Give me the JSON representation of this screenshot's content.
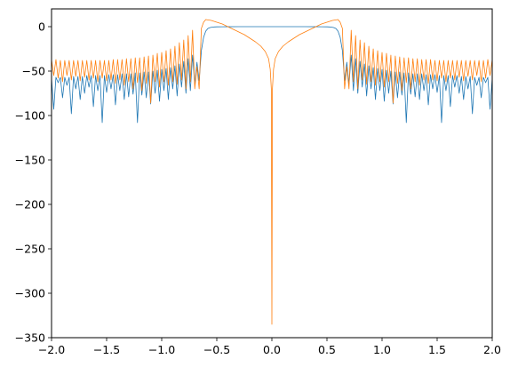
{
  "chart_data": {
    "type": "line",
    "title": "",
    "xlabel": "",
    "ylabel": "",
    "xlim": [
      -2.0,
      2.0
    ],
    "ylim": [
      -350,
      20
    ],
    "xticks": [
      {
        "value": -2.0,
        "label": "−2.0"
      },
      {
        "value": -1.5,
        "label": "−1.5"
      },
      {
        "value": -1.0,
        "label": "−1.0"
      },
      {
        "value": -0.5,
        "label": "−0.5"
      },
      {
        "value": 0.0,
        "label": "0.0"
      },
      {
        "value": 0.5,
        "label": "0.5"
      },
      {
        "value": 1.0,
        "label": "1.0"
      },
      {
        "value": 1.5,
        "label": "1.5"
      },
      {
        "value": 2.0,
        "label": "2.0"
      }
    ],
    "yticks": [
      {
        "value": 0,
        "label": "0"
      },
      {
        "value": -50,
        "label": "−50"
      },
      {
        "value": -100,
        "label": "−100"
      },
      {
        "value": -150,
        "label": "−150"
      },
      {
        "value": -200,
        "label": "−200"
      },
      {
        "value": -250,
        "label": "−250"
      },
      {
        "value": -300,
        "label": "−300"
      },
      {
        "value": -350,
        "label": "−350"
      }
    ],
    "grid": false,
    "legend": "none",
    "series": [
      {
        "color": "#1f77b4",
        "x": [
          -2.0,
          -1.98,
          -1.96,
          -1.94,
          -1.92,
          -1.9,
          -1.88,
          -1.86,
          -1.84,
          -1.82,
          -1.8,
          -1.78,
          -1.76,
          -1.74,
          -1.72,
          -1.7,
          -1.68,
          -1.66,
          -1.64,
          -1.62,
          -1.6,
          -1.58,
          -1.56,
          -1.54,
          -1.52,
          -1.5,
          -1.48,
          -1.46,
          -1.44,
          -1.42,
          -1.4,
          -1.38,
          -1.36,
          -1.34,
          -1.32,
          -1.3,
          -1.28,
          -1.26,
          -1.24,
          -1.22,
          -1.2,
          -1.18,
          -1.16,
          -1.14,
          -1.12,
          -1.1,
          -1.08,
          -1.06,
          -1.04,
          -1.02,
          -1.0,
          -0.98,
          -0.96,
          -0.94,
          -0.92,
          -0.9,
          -0.88,
          -0.86,
          -0.84,
          -0.82,
          -0.8,
          -0.78,
          -0.76,
          -0.74,
          -0.72,
          -0.7,
          -0.68,
          -0.66,
          -0.64,
          -0.62,
          -0.6,
          -0.58,
          -0.56,
          -0.54,
          -0.52,
          -0.5,
          -0.45,
          -0.4,
          -0.3,
          -0.2,
          -0.1,
          0.0,
          0.1,
          0.2,
          0.3,
          0.4,
          0.45,
          0.5,
          0.52,
          0.54,
          0.56,
          0.58,
          0.6,
          0.62,
          0.64,
          0.66,
          0.68,
          0.7,
          0.72,
          0.74,
          0.76,
          0.78,
          0.8,
          0.82,
          0.84,
          0.86,
          0.88,
          0.9,
          0.92,
          0.94,
          0.96,
          0.98,
          1.0,
          1.02,
          1.04,
          1.06,
          1.08,
          1.1,
          1.12,
          1.14,
          1.16,
          1.18,
          1.2,
          1.22,
          1.24,
          1.26,
          1.28,
          1.3,
          1.32,
          1.34,
          1.36,
          1.38,
          1.4,
          1.42,
          1.44,
          1.46,
          1.48,
          1.5,
          1.52,
          1.54,
          1.56,
          1.58,
          1.6,
          1.62,
          1.64,
          1.66,
          1.68,
          1.7,
          1.72,
          1.74,
          1.76,
          1.78,
          1.8,
          1.82,
          1.84,
          1.86,
          1.88,
          1.9,
          1.92,
          1.94,
          1.96,
          1.98,
          2.0
        ],
        "y": [
          -58,
          -93,
          -57,
          -63,
          -57,
          -80,
          -57,
          -66,
          -57,
          -98,
          -56,
          -70,
          -56,
          -82,
          -56,
          -75,
          -55,
          -68,
          -55,
          -90,
          -55,
          -72,
          -55,
          -108,
          -55,
          -74,
          -54,
          -70,
          -54,
          -88,
          -54,
          -72,
          -53,
          -82,
          -53,
          -79,
          -53,
          -76,
          -52,
          -108,
          -52,
          -77,
          -51,
          -80,
          -51,
          -87,
          -50,
          -75,
          -49,
          -84,
          -48,
          -72,
          -47,
          -82,
          -46,
          -70,
          -44,
          -78,
          -42,
          -68,
          -39,
          -75,
          -36,
          -72,
          -32,
          -65,
          -40,
          -61,
          -27,
          -12,
          -5,
          -2,
          -1,
          -0.5,
          -0.3,
          -0.2,
          -0.1,
          -0.05,
          -0.02,
          -0.01,
          -0.005,
          -0.005,
          -0.005,
          -0.01,
          -0.02,
          -0.05,
          -0.1,
          -0.2,
          -0.3,
          -0.5,
          -1,
          -2,
          -5,
          -12,
          -27,
          -61,
          -40,
          -65,
          -32,
          -72,
          -36,
          -75,
          -39,
          -68,
          -42,
          -78,
          -44,
          -70,
          -46,
          -82,
          -47,
          -72,
          -48,
          -84,
          -49,
          -75,
          -50,
          -87,
          -51,
          -80,
          -51,
          -77,
          -52,
          -108,
          -52,
          -76,
          -53,
          -79,
          -53,
          -82,
          -53,
          -72,
          -54,
          -88,
          -54,
          -70,
          -54,
          -74,
          -55,
          -108,
          -55,
          -72,
          -55,
          -90,
          -55,
          -68,
          -55,
          -75,
          -56,
          -82,
          -56,
          -70,
          -56,
          -98,
          -57,
          -66,
          -57,
          -80,
          -57,
          -63,
          -57,
          -93,
          -58
        ]
      },
      {
        "color": "#ff7f0e",
        "x": [
          -2.0,
          -1.98,
          -1.96,
          -1.94,
          -1.92,
          -1.9,
          -1.88,
          -1.86,
          -1.84,
          -1.82,
          -1.8,
          -1.78,
          -1.76,
          -1.74,
          -1.72,
          -1.7,
          -1.68,
          -1.66,
          -1.64,
          -1.62,
          -1.6,
          -1.58,
          -1.56,
          -1.54,
          -1.52,
          -1.5,
          -1.48,
          -1.46,
          -1.44,
          -1.42,
          -1.4,
          -1.38,
          -1.36,
          -1.34,
          -1.32,
          -1.3,
          -1.28,
          -1.26,
          -1.24,
          -1.22,
          -1.2,
          -1.18,
          -1.16,
          -1.14,
          -1.12,
          -1.1,
          -1.08,
          -1.06,
          -1.04,
          -1.02,
          -1.0,
          -0.98,
          -0.96,
          -0.94,
          -0.92,
          -0.9,
          -0.88,
          -0.86,
          -0.84,
          -0.82,
          -0.8,
          -0.78,
          -0.76,
          -0.74,
          -0.72,
          -0.7,
          -0.68,
          -0.66,
          -0.64,
          -0.62,
          -0.6,
          -0.55,
          -0.5,
          -0.45,
          -0.4,
          -0.35,
          -0.3,
          -0.25,
          -0.2,
          -0.15,
          -0.1,
          -0.06,
          -0.03,
          -0.015,
          -0.005,
          0.0,
          0.005,
          0.015,
          0.03,
          0.06,
          0.1,
          0.15,
          0.2,
          0.25,
          0.3,
          0.35,
          0.4,
          0.45,
          0.5,
          0.55,
          0.6,
          0.62,
          0.64,
          0.66,
          0.68,
          0.7,
          0.72,
          0.74,
          0.76,
          0.78,
          0.8,
          0.82,
          0.84,
          0.86,
          0.88,
          0.9,
          0.92,
          0.94,
          0.96,
          0.98,
          1.0,
          1.02,
          1.04,
          1.06,
          1.08,
          1.1,
          1.12,
          1.14,
          1.16,
          1.18,
          1.2,
          1.22,
          1.24,
          1.26,
          1.28,
          1.3,
          1.32,
          1.34,
          1.36,
          1.38,
          1.4,
          1.42,
          1.44,
          1.46,
          1.48,
          1.5,
          1.52,
          1.54,
          1.56,
          1.58,
          1.6,
          1.62,
          1.64,
          1.66,
          1.68,
          1.7,
          1.72,
          1.74,
          1.76,
          1.78,
          1.8,
          1.82,
          1.84,
          1.86,
          1.88,
          1.9,
          1.92,
          1.94,
          1.96,
          1.98,
          2.0
        ],
        "y": [
          -37,
          -55,
          -37,
          -58,
          -38,
          -62,
          -38,
          -55,
          -38,
          -60,
          -38,
          -56,
          -38,
          -61,
          -38,
          -57,
          -38,
          -60,
          -38,
          -58,
          -38,
          -62,
          -38,
          -58,
          -38,
          -61,
          -38,
          -60,
          -37,
          -64,
          -37,
          -60,
          -37,
          -66,
          -36,
          -62,
          -36,
          -70,
          -35,
          -63,
          -35,
          -72,
          -34,
          -64,
          -33,
          -86,
          -32,
          -62,
          -30,
          -68,
          -29,
          -62,
          -27,
          -66,
          -25,
          -62,
          -22,
          -65,
          -18,
          -60,
          -15,
          -70,
          -10,
          -62,
          -4,
          -70,
          -45,
          -70,
          -2,
          5,
          8,
          7,
          5,
          3,
          0,
          -3,
          -6,
          -9,
          -13,
          -17,
          -22,
          -28,
          -36,
          -48,
          -70,
          -335,
          -70,
          -48,
          -36,
          -28,
          -22,
          -17,
          -13,
          -9,
          -6,
          -3,
          0,
          3,
          5,
          7,
          8,
          5,
          -2,
          -70,
          -45,
          -70,
          -4,
          -62,
          -10,
          -70,
          -15,
          -60,
          -18,
          -65,
          -22,
          -62,
          -25,
          -66,
          -27,
          -62,
          -29,
          -68,
          -30,
          -62,
          -32,
          -86,
          -33,
          -64,
          -34,
          -72,
          -35,
          -63,
          -35,
          -70,
          -36,
          -62,
          -36,
          -66,
          -37,
          -60,
          -37,
          -64,
          -37,
          -60,
          -38,
          -61,
          -38,
          -58,
          -38,
          -62,
          -38,
          -58,
          -38,
          -60,
          -38,
          -57,
          -38,
          -61,
          -38,
          -56,
          -38,
          -60,
          -38,
          -55,
          -38,
          -62,
          -38,
          -58,
          -37,
          -55,
          -37
        ]
      }
    ]
  }
}
